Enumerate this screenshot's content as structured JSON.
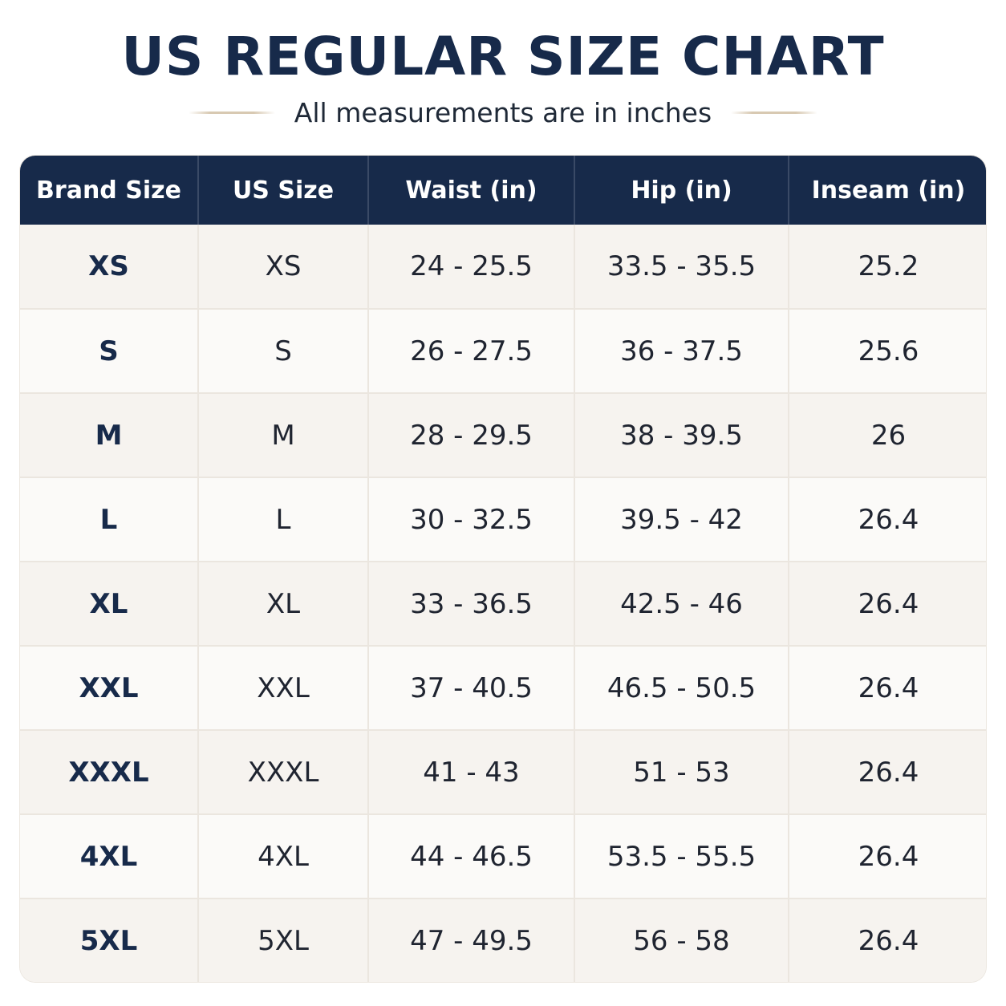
{
  "title": "US REGULAR SIZE CHART",
  "subtitle": "All measurements are in inches",
  "colors": {
    "header_bg": "#172a4a",
    "header_text": "#ffffff",
    "title_text": "#172a4a",
    "row_odd": "#f6f3ef",
    "row_even": "#fbfaf8",
    "divider_accent": "#d8c9b2"
  },
  "table": {
    "headers": [
      "Brand Size",
      "US Size",
      "Waist (in)",
      "Hip (in)",
      "Inseam (in)"
    ],
    "rows": [
      [
        "XS",
        "XS",
        "24 - 25.5",
        "33.5 - 35.5",
        "25.2"
      ],
      [
        "S",
        "S",
        "26 - 27.5",
        "36 - 37.5",
        "25.6"
      ],
      [
        "M",
        "M",
        "28 - 29.5",
        "38 - 39.5",
        "26"
      ],
      [
        "L",
        "L",
        "30 - 32.5",
        "39.5 - 42",
        "26.4"
      ],
      [
        "XL",
        "XL",
        "33 - 36.5",
        "42.5 - 46",
        "26.4"
      ],
      [
        "XXL",
        "XXL",
        "37 - 40.5",
        "46.5 - 50.5",
        "26.4"
      ],
      [
        "XXXL",
        "XXXL",
        "41 - 43",
        "51 - 53",
        "26.4"
      ],
      [
        "4XL",
        "4XL",
        "44 - 46.5",
        "53.5 - 55.5",
        "26.4"
      ],
      [
        "5XL",
        "5XL",
        "47 - 49.5",
        "56 - 58",
        "26.4"
      ]
    ]
  }
}
